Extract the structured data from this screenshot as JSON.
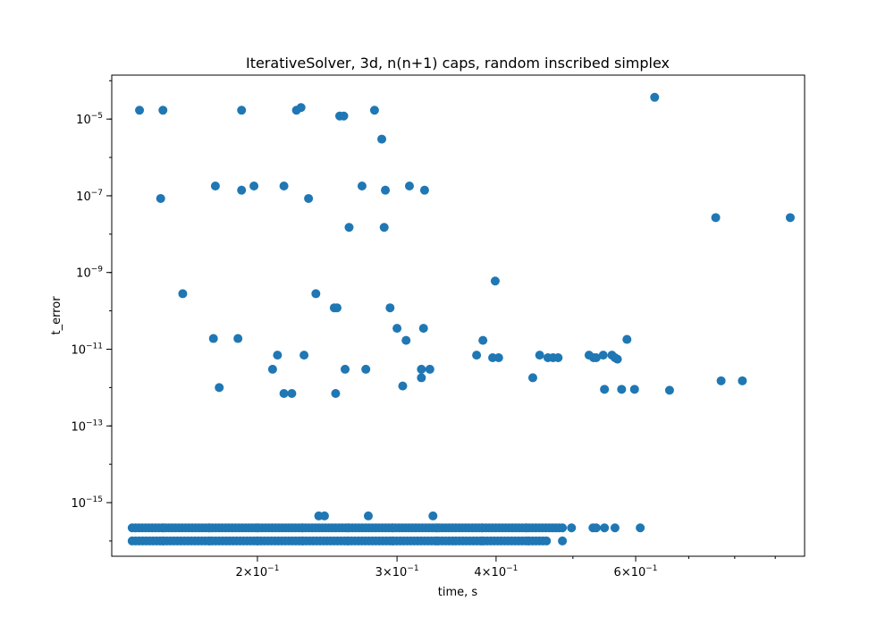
{
  "chart_data": {
    "type": "scatter",
    "title": "IterativeSolver, 3d, n(n+1) caps, random inscribed simplex",
    "xlabel": "time, s",
    "ylabel": "t_error",
    "xscale": "log",
    "yscale": "log",
    "xlim": [
      0.131,
      0.98
    ],
    "ylim": [
      4e-17,
      0.00014
    ],
    "grid": false,
    "marker_color": "#1f77b4",
    "x_ticks": [
      {
        "value": 0.2,
        "mantissa": "2",
        "exp": "−1"
      },
      {
        "value": 0.3,
        "mantissa": "3",
        "exp": "−1"
      },
      {
        "value": 0.4,
        "mantissa": "4",
        "exp": "−1"
      },
      {
        "value": 0.6,
        "mantissa": "6",
        "exp": "−1"
      }
    ],
    "x_minor_ticks": [
      0.5,
      0.7,
      0.8,
      0.9
    ],
    "y_ticks": [
      {
        "value": 1e-15,
        "exp": "−15"
      },
      {
        "value": 1e-13,
        "exp": "−13"
      },
      {
        "value": 1e-11,
        "exp": "−11"
      },
      {
        "value": 1e-09,
        "exp": "−9"
      },
      {
        "value": 1e-07,
        "exp": "−7"
      },
      {
        "value": 1e-05,
        "exp": "−5"
      }
    ],
    "points": [
      [
        0.142,
        1.7e-05
      ],
      [
        0.152,
        1.7e-05
      ],
      [
        0.191,
        1.7e-05
      ],
      [
        0.224,
        1.7e-05
      ],
      [
        0.227,
        2e-05
      ],
      [
        0.254,
        1.2e-05
      ],
      [
        0.257,
        1.2e-05
      ],
      [
        0.281,
        1.7e-05
      ],
      [
        0.287,
        3e-06
      ],
      [
        0.634,
        3.7e-05
      ],
      [
        0.151,
        8.5e-08
      ],
      [
        0.177,
        1.8e-07
      ],
      [
        0.191,
        1.4e-07
      ],
      [
        0.198,
        1.8e-07
      ],
      [
        0.216,
        1.8e-07
      ],
      [
        0.232,
        8.5e-08
      ],
      [
        0.271,
        1.8e-07
      ],
      [
        0.29,
        1.4e-07
      ],
      [
        0.311,
        1.8e-07
      ],
      [
        0.325,
        1.4e-07
      ],
      [
        0.261,
        1.5e-08
      ],
      [
        0.289,
        1.5e-08
      ],
      [
        0.757,
        2.7e-08
      ],
      [
        0.94,
        2.7e-08
      ],
      [
        0.161,
        2.8e-10
      ],
      [
        0.237,
        2.8e-10
      ],
      [
        0.25,
        1.2e-10
      ],
      [
        0.252,
        1.2e-10
      ],
      [
        0.294,
        1.2e-10
      ],
      [
        0.3,
        3.5e-11
      ],
      [
        0.324,
        3.5e-11
      ],
      [
        0.399,
        6e-10
      ],
      [
        0.176,
        1.9e-11
      ],
      [
        0.189,
        1.9e-11
      ],
      [
        0.212,
        7e-12
      ],
      [
        0.229,
        7e-12
      ],
      [
        0.308,
        1.7e-11
      ],
      [
        0.385,
        1.7e-11
      ],
      [
        0.378,
        7e-12
      ],
      [
        0.396,
        6e-12
      ],
      [
        0.403,
        6e-12
      ],
      [
        0.454,
        7e-12
      ],
      [
        0.465,
        6e-12
      ],
      [
        0.472,
        6e-12
      ],
      [
        0.479,
        6e-12
      ],
      [
        0.524,
        7e-12
      ],
      [
        0.531,
        6e-12
      ],
      [
        0.535,
        6e-12
      ],
      [
        0.546,
        7e-12
      ],
      [
        0.56,
        7e-12
      ],
      [
        0.565,
        6e-12
      ],
      [
        0.569,
        5.5e-12
      ],
      [
        0.585,
        1.8e-11
      ],
      [
        0.179,
        1e-12
      ],
      [
        0.209,
        3e-12
      ],
      [
        0.216,
        7e-13
      ],
      [
        0.221,
        7e-13
      ],
      [
        0.251,
        7e-13
      ],
      [
        0.258,
        3e-12
      ],
      [
        0.274,
        3e-12
      ],
      [
        0.305,
        1.1e-12
      ],
      [
        0.322,
        1.8e-12
      ],
      [
        0.322,
        3e-12
      ],
      [
        0.33,
        3e-12
      ],
      [
        0.445,
        1.8e-12
      ],
      [
        0.548,
        9e-13
      ],
      [
        0.576,
        9e-13
      ],
      [
        0.598,
        9e-13
      ],
      [
        0.662,
        8.5e-13
      ],
      [
        0.769,
        1.5e-12
      ],
      [
        0.818,
        1.5e-12
      ],
      [
        0.239,
        4.5e-16
      ],
      [
        0.243,
        4.5e-16
      ],
      [
        0.276,
        4.5e-16
      ],
      [
        0.333,
        4.5e-16
      ],
      [
        0.498,
        2.2e-16
      ],
      [
        0.53,
        2.2e-16
      ],
      [
        0.535,
        2.2e-16
      ],
      [
        0.548,
        2.2e-16
      ],
      [
        0.565,
        2.2e-16
      ],
      [
        0.608,
        2.2e-16
      ],
      [
        0.485,
        1e-16
      ],
      [
        0.152,
        2.2e-16
      ],
      [
        0.174,
        2.2e-16
      ],
      [
        0.2,
        2.2e-16
      ],
      [
        0.228,
        2.2e-16
      ],
      [
        0.26,
        2.2e-16
      ],
      [
        0.296,
        2.2e-16
      ],
      [
        0.337,
        2.2e-16
      ],
      [
        0.384,
        2.2e-16
      ],
      [
        0.437,
        2.2e-16
      ],
      [
        0.152,
        1e-16
      ],
      [
        0.174,
        1e-16
      ],
      [
        0.2,
        1e-16
      ],
      [
        0.228,
        1e-16
      ],
      [
        0.26,
        1e-16
      ],
      [
        0.296,
        1e-16
      ],
      [
        0.337,
        1e-16
      ],
      [
        0.384,
        1e-16
      ],
      [
        0.439,
        1e-16
      ]
    ],
    "dense_bands": [
      {
        "y": 2.2e-16,
        "x_from": 0.139,
        "x_to": 0.485,
        "count": 130
      },
      {
        "y": 1e-16,
        "x_from": 0.139,
        "x_to": 0.463,
        "count": 120
      }
    ]
  }
}
